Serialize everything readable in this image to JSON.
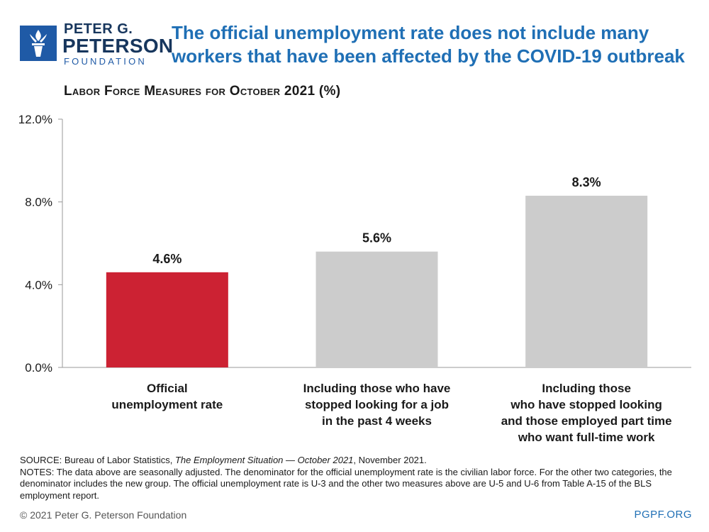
{
  "logo": {
    "line1": "PETER G.",
    "line2": "PETERSON",
    "line3": "FOUNDATION"
  },
  "headline": "The official unemployment rate does not include many workers that have been affected by the COVID-19 outbreak",
  "subtitle": "Labor Force Measures for October 2021 (%)",
  "chart_data": {
    "type": "bar",
    "title": "Labor Force Measures for October 2021 (%)",
    "categories": [
      [
        "Official",
        "unemployment rate"
      ],
      [
        "Including those who have",
        "stopped looking for a job",
        "in the past 4 weeks"
      ],
      [
        "Including those",
        "who have stopped looking",
        "and those employed part time",
        "who want full-time work"
      ]
    ],
    "values": [
      4.6,
      5.6,
      8.3
    ],
    "value_labels": [
      "4.6%",
      "5.6%",
      "8.3%"
    ],
    "bar_colors": [
      "#cc2233",
      "#cccccc",
      "#cccccc"
    ],
    "ylim": [
      0,
      12
    ],
    "yticks": [
      0,
      4,
      8,
      12
    ],
    "ytick_labels": [
      "0.0%",
      "4.0%",
      "8.0%",
      "12.0%"
    ],
    "grid": false,
    "legend": "none"
  },
  "footer": {
    "source_prefix": "SOURCE: Bureau of Labor Statistics, ",
    "source_title": "The Employment Situation — October 2021",
    "source_suffix": ", November 2021.",
    "notes": "NOTES: The data above are seasonally adjusted. The denominator for the official unemployment rate is the civilian labor force. For the other two categories, the denominator includes the new group. The official unemployment rate is U-3 and the other two measures above are U-5 and U-6 from Table A-15 of the BLS employment report."
  },
  "copyright": "© 2021 Peter G. Peterson Foundation",
  "site": "PGPF.ORG",
  "colors": {
    "headline": "#1f6fb5",
    "logo_blue": "#1f5aa6",
    "official_bar": "#cc2233",
    "other_bars": "#cccccc"
  },
  "icons": {
    "logo": "torch-icon"
  }
}
